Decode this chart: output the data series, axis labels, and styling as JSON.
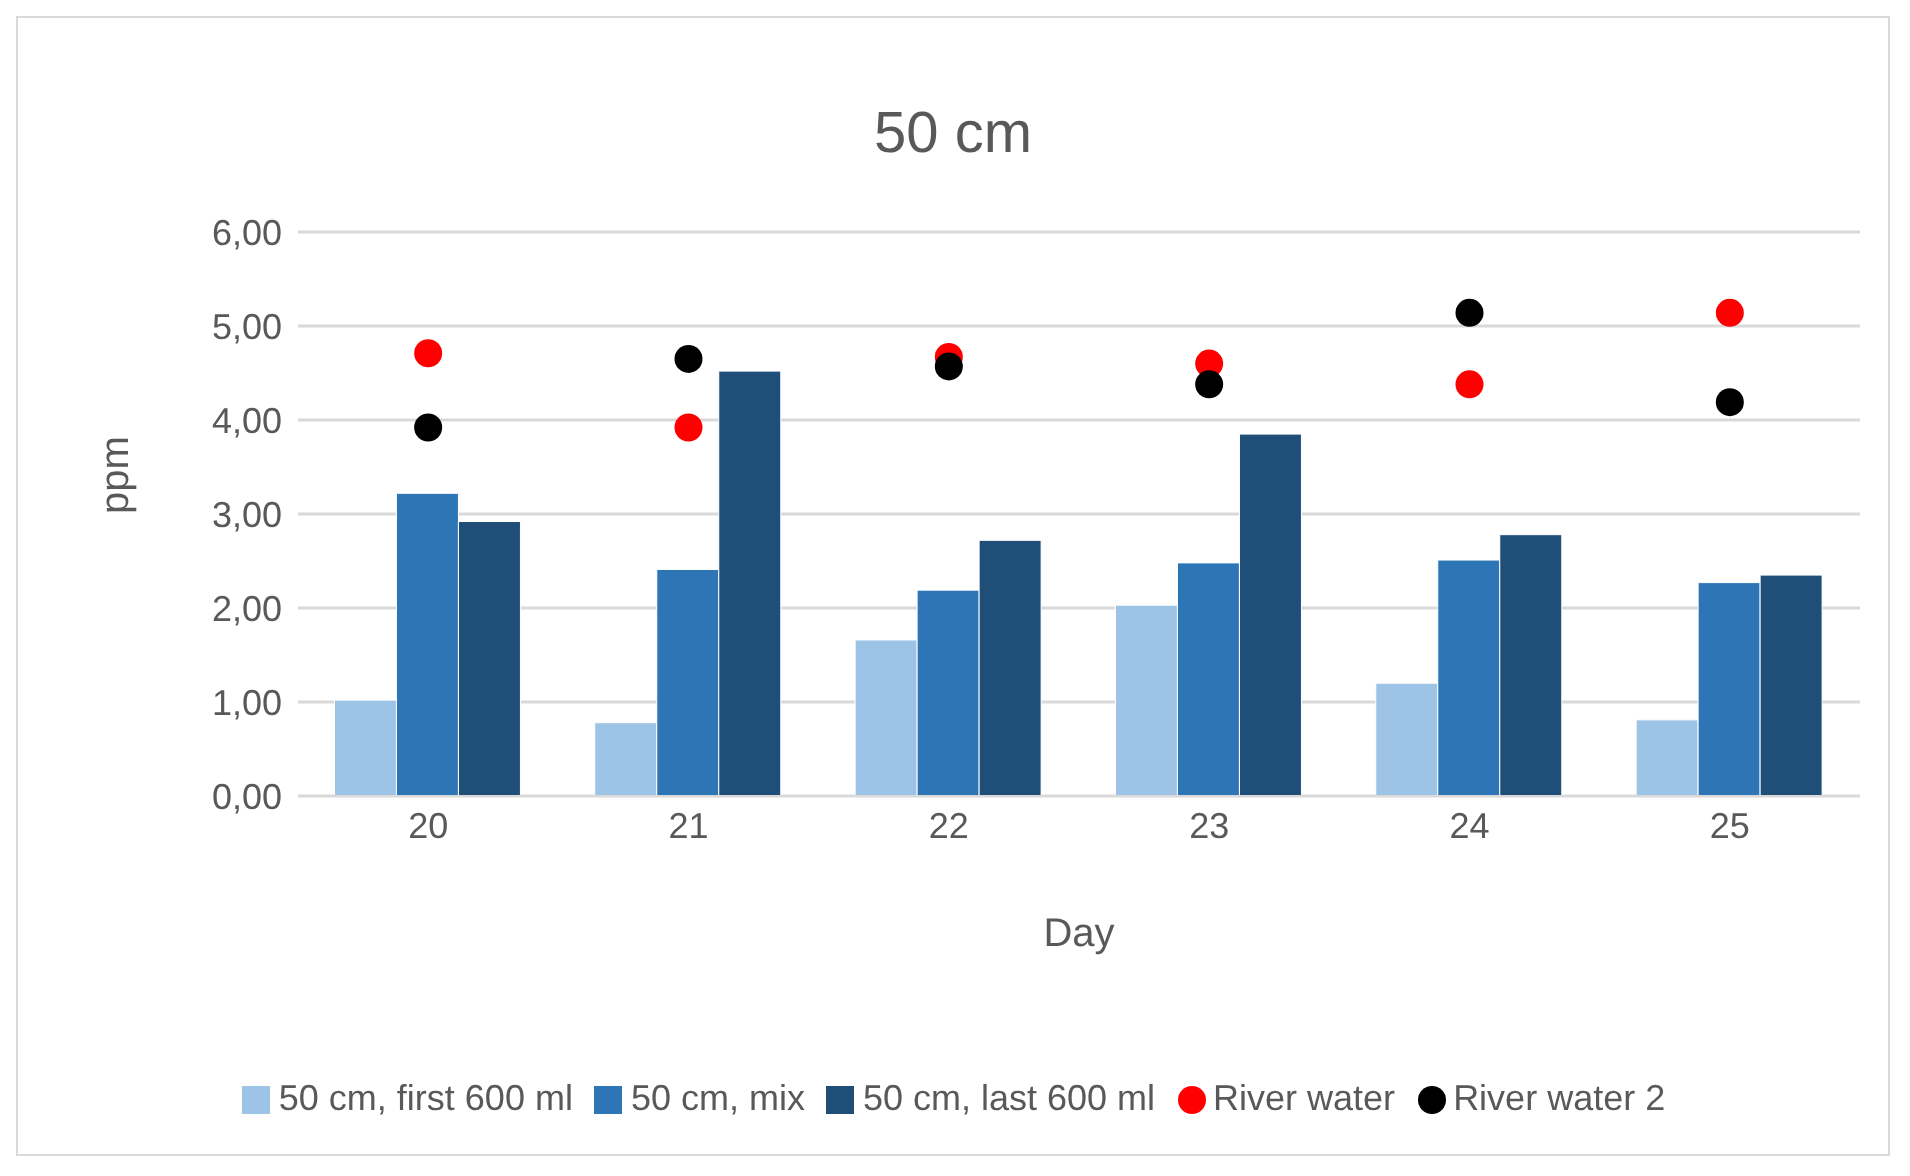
{
  "chart_data": {
    "type": "bar",
    "title": "50 cm",
    "xlabel": "Day",
    "ylabel": "ppm",
    "categories": [
      "20",
      "21",
      "22",
      "23",
      "24",
      "25"
    ],
    "series": [
      {
        "name": "50 cm, first 600 ml",
        "color": "#9dc3e6",
        "values": [
          1.02,
          0.78,
          1.66,
          2.03,
          1.2,
          0.81
        ]
      },
      {
        "name": "50 cm, mix",
        "color": "#2e75b6",
        "values": [
          3.22,
          2.41,
          2.19,
          2.48,
          2.51,
          2.27
        ]
      },
      {
        "name": "50 cm, last 600 ml",
        "color": "#1f4e79",
        "values": [
          2.92,
          4.52,
          2.72,
          3.85,
          2.78,
          2.35
        ]
      },
      {
        "name": "River water",
        "type": "scatter",
        "color": "#ff0000",
        "x": [
          "20",
          "21",
          "22",
          "23",
          "24",
          "25"
        ],
        "values": [
          4.71,
          3.92,
          4.67,
          4.6,
          4.38,
          5.14
        ]
      },
      {
        "name": "River water 2",
        "type": "scatter",
        "color": "#000000",
        "x": [
          "20",
          "21",
          "22",
          "23",
          "24",
          "25"
        ],
        "values": [
          3.92,
          4.65,
          4.57,
          4.38,
          5.14,
          4.19
        ]
      }
    ],
    "ylim": [
      0,
      6
    ],
    "yticks": [
      {
        "value": 0,
        "label": "0,00"
      },
      {
        "value": 1,
        "label": "1,00"
      },
      {
        "value": 2,
        "label": "2,00"
      },
      {
        "value": 3,
        "label": "3,00"
      },
      {
        "value": 4,
        "label": "4,00"
      },
      {
        "value": 5,
        "label": "5,00"
      },
      {
        "value": 6,
        "label": "6,00"
      }
    ],
    "grid": "y",
    "legend": "bottom",
    "marker": "circle"
  }
}
